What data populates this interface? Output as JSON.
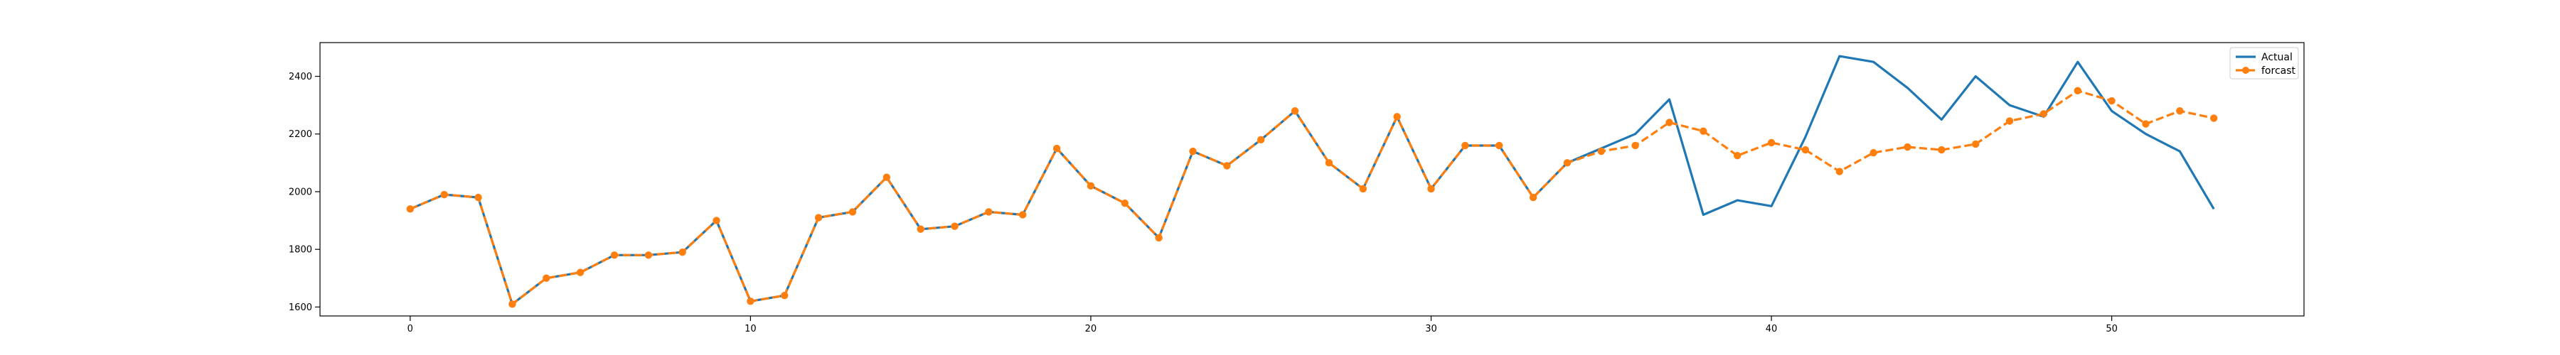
{
  "chart_data": {
    "type": "line",
    "title": "",
    "xlabel": "",
    "ylabel": "",
    "xlim": [
      -2.65,
      55.65
    ],
    "ylim": [
      1569,
      2517
    ],
    "x_ticks": [
      0,
      10,
      20,
      30,
      40,
      50
    ],
    "y_ticks": [
      1600,
      1800,
      2000,
      2200,
      2400
    ],
    "grid": false,
    "legend_position": "top-right",
    "series": [
      {
        "name": "Actual",
        "color": "#1f77b4",
        "style": "solid",
        "marker": "none",
        "x": [
          0,
          1,
          2,
          3,
          4,
          5,
          6,
          7,
          8,
          9,
          10,
          11,
          12,
          13,
          14,
          15,
          16,
          17,
          18,
          19,
          20,
          21,
          22,
          23,
          24,
          25,
          26,
          27,
          28,
          29,
          30,
          31,
          32,
          33,
          34,
          35,
          36,
          37,
          38,
          39,
          40,
          41,
          42,
          43,
          44,
          45,
          46,
          47,
          48,
          49,
          50,
          51,
          52,
          53
        ],
        "values": [
          1940,
          1990,
          1980,
          1610,
          1700,
          1720,
          1780,
          1780,
          1790,
          1900,
          1620,
          1640,
          1910,
          1930,
          2050,
          1870,
          1880,
          1930,
          1920,
          2150,
          2020,
          1960,
          1840,
          2140,
          2090,
          2180,
          2280,
          2100,
          2010,
          2260,
          2010,
          2160,
          2160,
          1980,
          2100,
          2150,
          2200,
          2320,
          1920,
          1970,
          1950,
          2190,
          2470,
          2450,
          2360,
          2250,
          2400,
          2300,
          2260,
          2450,
          2280,
          2200,
          2140,
          1940
        ]
      },
      {
        "name": "forcast",
        "color": "#ff7f0e",
        "style": "dashed",
        "marker": "circle",
        "x": [
          0,
          1,
          2,
          3,
          4,
          5,
          6,
          7,
          8,
          9,
          10,
          11,
          12,
          13,
          14,
          15,
          16,
          17,
          18,
          19,
          20,
          21,
          22,
          23,
          24,
          25,
          26,
          27,
          28,
          29,
          30,
          31,
          32,
          33,
          34,
          35,
          36,
          37,
          38,
          39,
          40,
          41,
          42,
          43,
          44,
          45,
          46,
          47,
          48,
          49,
          50,
          51,
          52,
          53
        ],
        "values": [
          1940,
          1990,
          1980,
          1610,
          1700,
          1720,
          1780,
          1780,
          1790,
          1900,
          1620,
          1640,
          1910,
          1930,
          2050,
          1870,
          1880,
          1930,
          1920,
          2150,
          2020,
          1960,
          1840,
          2140,
          2090,
          2180,
          2280,
          2100,
          2010,
          2260,
          2010,
          2160,
          2160,
          1980,
          2100,
          2140,
          2160,
          2240,
          2210,
          2125,
          2170,
          2145,
          2070,
          2135,
          2155,
          2145,
          2165,
          2245,
          2270,
          2350,
          2315,
          2235,
          2280,
          2255
        ]
      }
    ]
  }
}
